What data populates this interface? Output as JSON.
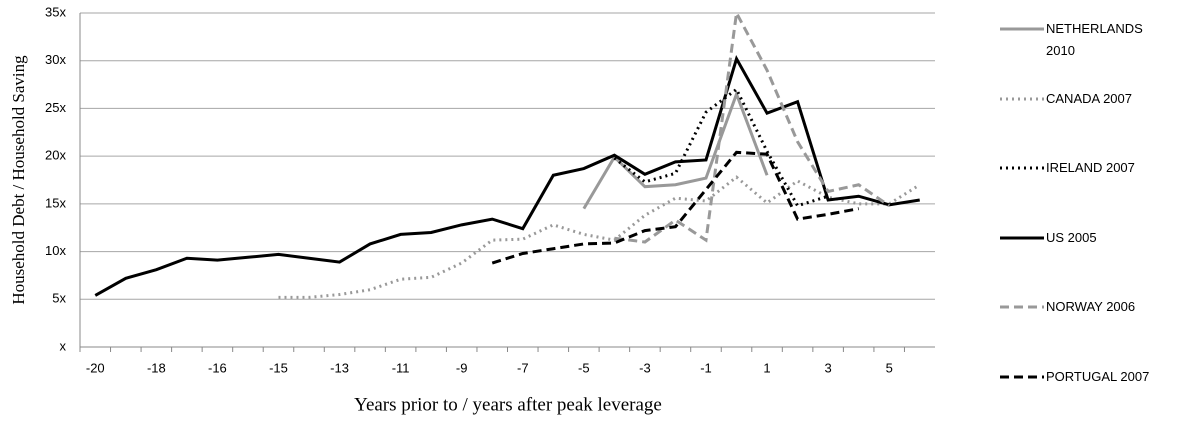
{
  "chart_data": {
    "type": "line",
    "y_label": "Household Debt / Household Saving",
    "x_label": "Years prior to / years after peak leverage",
    "categories": [
      "-20",
      null,
      "-18",
      null,
      "-16",
      null,
      "-15",
      null,
      "-13",
      null,
      "-11",
      null,
      "-9",
      null,
      "-7",
      null,
      "-5",
      null,
      "-3",
      null,
      "-1",
      null,
      "1",
      null,
      "3",
      null,
      "5",
      null
    ],
    "ylim": [
      0,
      35
    ],
    "yticks": [
      {
        "value": 0,
        "label": "x"
      },
      {
        "value": 5,
        "label": "5x"
      },
      {
        "value": 10,
        "label": "10x"
      },
      {
        "value": 15,
        "label": "15x"
      },
      {
        "value": 20,
        "label": "20x"
      },
      {
        "value": 25,
        "label": "25x"
      },
      {
        "value": 30,
        "label": "30x"
      },
      {
        "value": 35,
        "label": "35x"
      }
    ],
    "grid": true,
    "series": [
      {
        "name": "NETHERLANDS 2010",
        "color": "#999999",
        "dash": "solid",
        "values": [
          null,
          null,
          null,
          null,
          null,
          null,
          null,
          null,
          null,
          null,
          null,
          null,
          null,
          null,
          null,
          null,
          14.5,
          19.9,
          16.8,
          17.0,
          17.7,
          26.5,
          18.0,
          null,
          null,
          null,
          null,
          null
        ]
      },
      {
        "name": "CANADA 2007",
        "color": "#999999",
        "dash": "dotted",
        "values": [
          null,
          null,
          null,
          null,
          null,
          null,
          5.2,
          5.2,
          5.5,
          6.0,
          7.1,
          7.3,
          8.8,
          11.2,
          11.3,
          12.8,
          11.8,
          11.2,
          13.8,
          15.6,
          15.3,
          17.8,
          15.1,
          17.4,
          15.7,
          15.0,
          15.0,
          17.0
        ]
      },
      {
        "name": "IRELAND 2007",
        "color": "#000000",
        "dash": "dotted",
        "values": [
          null,
          null,
          null,
          null,
          null,
          null,
          null,
          null,
          null,
          null,
          null,
          null,
          null,
          null,
          null,
          null,
          null,
          19.8,
          17.3,
          18.2,
          24.6,
          27.0,
          20.5,
          14.8,
          15.8,
          null,
          null,
          null
        ]
      },
      {
        "name": "US 2005",
        "color": "#000000",
        "dash": "solid",
        "values": [
          5.4,
          7.2,
          8.1,
          9.3,
          9.1,
          9.4,
          9.7,
          9.3,
          8.9,
          10.8,
          11.8,
          12.0,
          12.8,
          13.4,
          12.4,
          18.0,
          18.7,
          20.1,
          18.1,
          19.4,
          19.6,
          30.2,
          24.5,
          25.7,
          15.4,
          15.8,
          14.9,
          15.4
        ]
      },
      {
        "name": "NORWAY 2006",
        "color": "#999999",
        "dash": "dashed",
        "values": [
          null,
          null,
          null,
          null,
          null,
          null,
          null,
          null,
          null,
          null,
          null,
          null,
          null,
          null,
          null,
          null,
          null,
          11.4,
          11.0,
          13.3,
          11.2,
          35.0,
          29.0,
          21.5,
          16.3,
          17.0,
          14.8,
          null
        ]
      },
      {
        "name": "PORTUGAL 2007",
        "color": "#000000",
        "dash": "dashed",
        "values": [
          null,
          null,
          null,
          null,
          null,
          null,
          null,
          null,
          null,
          null,
          null,
          null,
          null,
          8.8,
          9.8,
          10.3,
          10.8,
          10.9,
          12.2,
          12.6,
          16.5,
          20.4,
          20.2,
          13.4,
          13.9,
          14.5,
          null,
          null
        ]
      }
    ]
  }
}
